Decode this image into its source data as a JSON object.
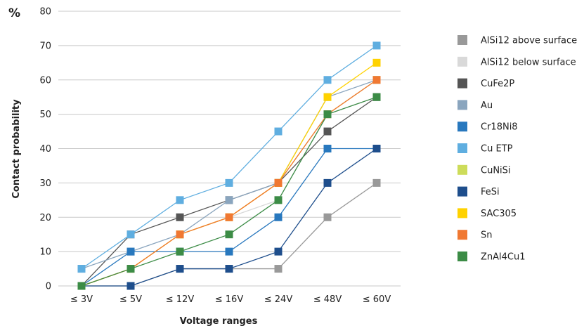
{
  "chart_data": {
    "type": "line",
    "title": "",
    "unit_label": "%",
    "xlabel": "Voltage ranges",
    "ylabel": "Contact probability",
    "categories": [
      "≤ 3V",
      "≤ 5V",
      "≤ 12V",
      "≤ 16V",
      "≤ 24V",
      "≤ 48V",
      "≤ 60V"
    ],
    "ylim": [
      0,
      80
    ],
    "yticks": [
      0,
      10,
      20,
      30,
      40,
      50,
      60,
      70,
      80
    ],
    "grid": true,
    "legend_position": "right",
    "series": [
      {
        "name": "AlSi12 above surface",
        "color": "#999999",
        "values": [
          0,
          0,
          5,
          5,
          5,
          20,
          30
        ]
      },
      {
        "name": "AlSi12 below surface",
        "color": "#d9d9d9",
        "values": [
          0,
          5,
          15,
          20,
          25,
          50,
          55
        ]
      },
      {
        "name": "CuFe2P",
        "color": "#555555",
        "values": [
          0,
          15,
          20,
          25,
          30,
          45,
          55
        ]
      },
      {
        "name": "Au",
        "color": "#8aa5be",
        "values": [
          5,
          10,
          15,
          25,
          30,
          55,
          60
        ]
      },
      {
        "name": "Cr18Ni8",
        "color": "#2878be",
        "values": [
          0,
          10,
          10,
          10,
          20,
          40,
          40
        ]
      },
      {
        "name": "Cu ETP",
        "color": "#5faee0",
        "values": [
          5,
          15,
          25,
          30,
          45,
          60,
          70
        ]
      },
      {
        "name": "CuNiSi",
        "color": "#cddc5a",
        "values": [
          0,
          5,
          15,
          20,
          30,
          50,
          60
        ]
      },
      {
        "name": "FeSi",
        "color": "#1e4e8c",
        "values": [
          0,
          0,
          5,
          5,
          10,
          30,
          40
        ]
      },
      {
        "name": "SAC305",
        "color": "#ffd200",
        "values": [
          0,
          5,
          15,
          20,
          30,
          55,
          65
        ]
      },
      {
        "name": "Sn",
        "color": "#f07832",
        "values": [
          0,
          5,
          15,
          20,
          30,
          50,
          60
        ]
      },
      {
        "name": "ZnAl4Cu1",
        "color": "#3c8c46",
        "values": [
          0,
          5,
          10,
          15,
          25,
          50,
          55
        ]
      }
    ]
  }
}
